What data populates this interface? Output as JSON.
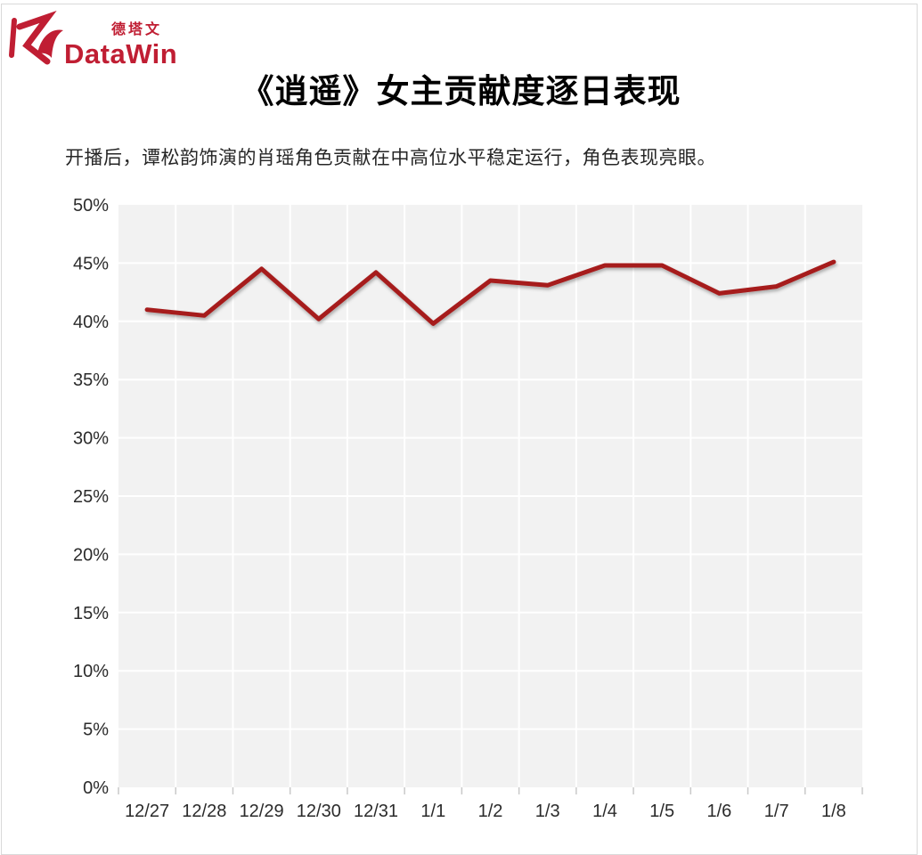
{
  "page": {
    "border_color": "#d9d9d9",
    "background_color": "#ffffff"
  },
  "logo": {
    "cn_text": "德塔文",
    "en_text": "DataWin",
    "brand_color": "#c01e33"
  },
  "header": {
    "title": "《逍遥》女主贡献度逐日表现",
    "subtitle": "开播后，谭松韵饰演的肖瑶角色贡献在中高位水平稳定运行，角色表现亮眼。"
  },
  "chart_data": {
    "type": "line",
    "title": "《逍遥》女主贡献度逐日表现",
    "categories": [
      "12/27",
      "12/28",
      "12/29",
      "12/30",
      "12/31",
      "1/1",
      "1/2",
      "1/3",
      "1/4",
      "1/5",
      "1/6",
      "1/7",
      "1/8"
    ],
    "series": [
      {
        "name": "女主贡献度",
        "values": [
          41.0,
          40.5,
          44.5,
          40.2,
          44.2,
          39.8,
          43.5,
          43.1,
          44.8,
          44.8,
          42.4,
          43.0,
          45.1
        ]
      }
    ],
    "xlabel": "",
    "ylabel": "",
    "ylim": [
      0,
      50
    ],
    "y_tick_step": 5,
    "y_tick_labels": [
      "0%",
      "5%",
      "10%",
      "15%",
      "20%",
      "25%",
      "30%",
      "35%",
      "40%",
      "45%",
      "50%"
    ],
    "grid": true,
    "legend_position": "none",
    "line_color": "#a61e1e",
    "plot_background_color": "#f2f2f2",
    "gridline_color": "#ffffff",
    "tick_color": "#c9c9c9",
    "axis_text_color": "#2b2b2b"
  }
}
